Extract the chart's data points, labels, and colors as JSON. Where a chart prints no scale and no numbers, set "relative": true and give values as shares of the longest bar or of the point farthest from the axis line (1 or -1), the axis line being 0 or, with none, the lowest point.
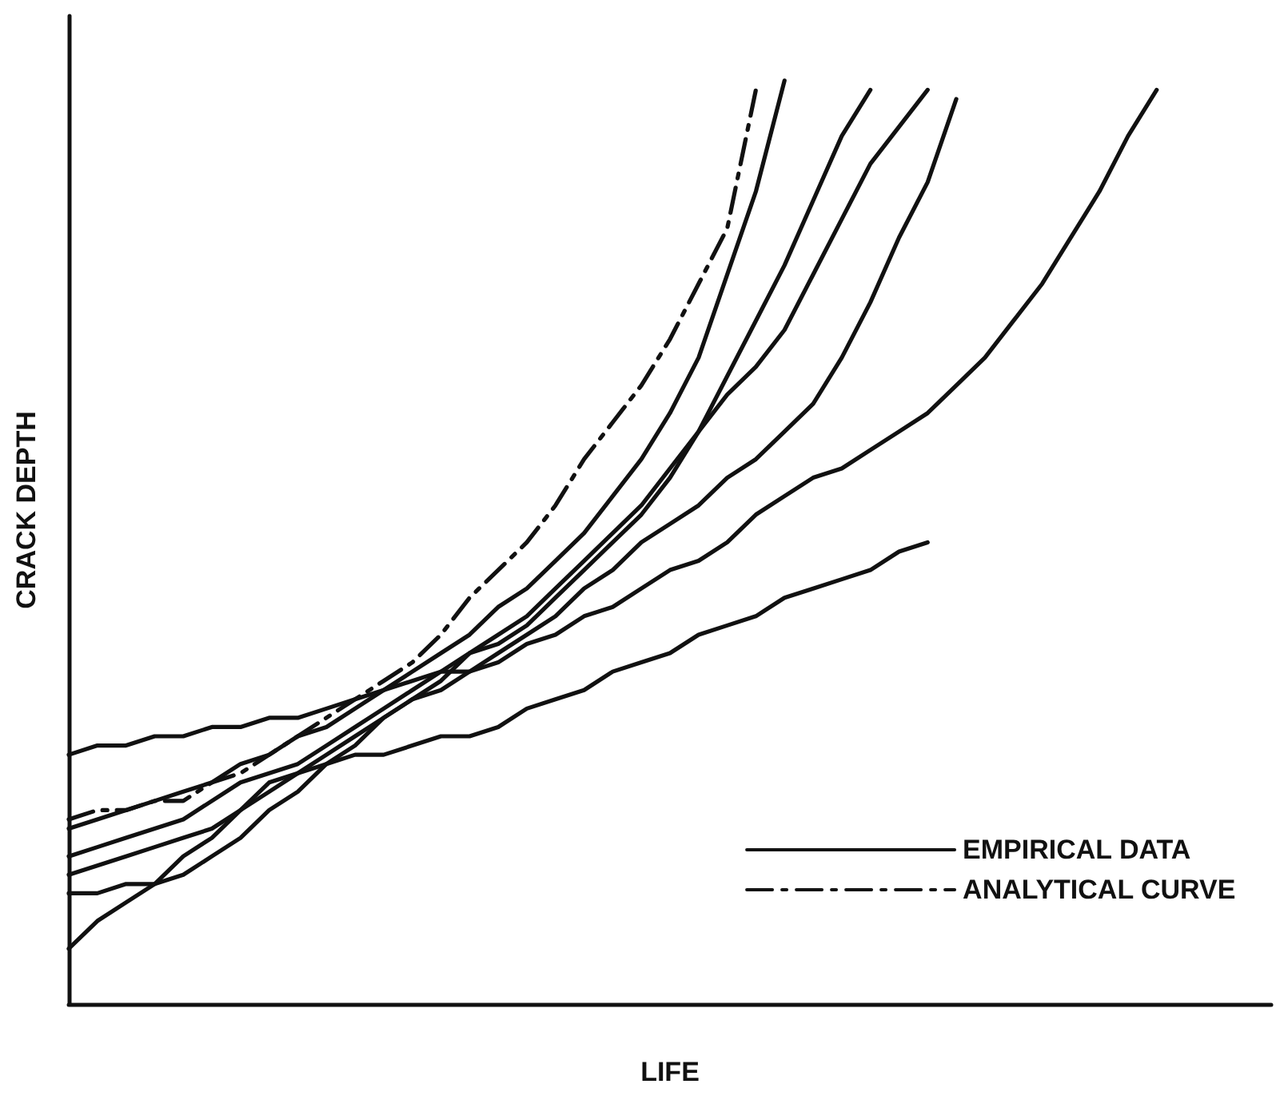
{
  "chart_data": {
    "type": "line",
    "relative": true,
    "xlabel": "LIFE",
    "ylabel": "CRACK DEPTH",
    "legend": "bottom right",
    "grid": false,
    "marker": "none",
    "categories": [
      null,
      null,
      null,
      null,
      null,
      null,
      null,
      null,
      null,
      null,
      null,
      null,
      null,
      null,
      null,
      null,
      null,
      null,
      null,
      null,
      null,
      null,
      null,
      null,
      null,
      null,
      null,
      null,
      null,
      null,
      null,
      null,
      null,
      null,
      null,
      null,
      null,
      null,
      null,
      null,
      null,
      null,
      null
    ],
    "series": [
      {
        "name": "EMPIRICAL DATA",
        "color": "#111111",
        "line_style": "solid",
        "values": [
          0.19,
          0.2,
          0.21,
          0.22,
          0.23,
          0.24,
          0.26,
          0.27,
          0.29,
          0.3,
          0.32,
          0.34,
          0.36,
          0.38,
          0.4,
          0.43,
          0.45,
          0.48,
          0.51,
          0.55,
          0.59,
          0.64,
          0.7,
          0.79,
          0.88,
          1.0,
          null,
          null,
          null,
          null,
          null,
          null,
          null,
          null,
          null,
          null,
          null,
          null,
          null,
          null,
          null,
          null,
          null
        ]
      },
      {
        "color": "#111111",
        "line_style": "solid",
        "values": [
          0.16,
          0.17,
          0.18,
          0.19,
          0.2,
          0.22,
          0.24,
          0.25,
          0.26,
          0.28,
          0.3,
          0.32,
          0.34,
          0.36,
          0.38,
          0.39,
          0.41,
          0.44,
          0.47,
          0.5,
          0.53,
          0.57,
          0.62,
          0.68,
          0.74,
          0.8,
          0.87,
          0.94,
          0.99,
          null,
          null,
          null,
          null,
          null,
          null,
          null,
          null,
          null,
          null,
          null,
          null,
          null,
          null
        ]
      },
      {
        "color": "#111111",
        "line_style": "solid",
        "values": [
          0.14,
          0.15,
          0.16,
          0.17,
          0.18,
          0.19,
          0.21,
          0.23,
          0.25,
          0.27,
          0.29,
          0.31,
          0.33,
          0.35,
          0.38,
          0.4,
          0.42,
          0.45,
          0.48,
          0.51,
          0.54,
          0.58,
          0.62,
          0.66,
          0.69,
          0.73,
          0.79,
          0.85,
          0.91,
          0.95,
          0.99,
          null,
          null,
          null,
          null,
          null,
          null,
          null,
          null,
          null,
          null,
          null,
          null
        ]
      },
      {
        "color": "#111111",
        "line_style": "solid",
        "values": [
          0.12,
          0.12,
          0.13,
          0.13,
          0.14,
          0.16,
          0.18,
          0.21,
          0.23,
          0.26,
          0.28,
          0.31,
          0.33,
          0.34,
          0.36,
          0.38,
          0.4,
          0.42,
          0.45,
          0.47,
          0.5,
          0.52,
          0.54,
          0.57,
          0.59,
          0.62,
          0.65,
          0.7,
          0.76,
          0.83,
          0.89,
          0.98,
          null,
          null,
          null,
          null,
          null,
          null,
          null,
          null,
          null,
          null,
          null
        ]
      },
      {
        "color": "#111111",
        "line_style": "solid",
        "values": [
          0.27,
          0.28,
          0.28,
          0.29,
          0.29,
          0.3,
          0.3,
          0.31,
          0.31,
          0.32,
          0.33,
          0.34,
          0.35,
          0.36,
          0.36,
          0.37,
          0.39,
          0.4,
          0.42,
          0.43,
          0.45,
          0.47,
          0.48,
          0.5,
          0.53,
          0.55,
          0.57,
          0.58,
          0.6,
          0.62,
          0.64,
          0.67,
          0.7,
          0.74,
          0.78,
          0.83,
          0.88,
          0.94,
          0.99,
          null,
          null,
          null,
          null
        ]
      },
      {
        "color": "#111111",
        "line_style": "solid",
        "values": [
          0.06,
          0.09,
          0.11,
          0.13,
          0.16,
          0.18,
          0.21,
          0.24,
          0.25,
          0.26,
          0.27,
          0.27,
          0.28,
          0.29,
          0.29,
          0.3,
          0.32,
          0.33,
          0.34,
          0.36,
          0.37,
          0.38,
          0.4,
          0.41,
          0.42,
          0.44,
          0.45,
          0.46,
          0.47,
          0.49,
          0.5,
          null,
          null,
          null,
          null,
          null,
          null,
          null,
          null,
          null,
          null,
          null,
          null
        ]
      },
      {
        "name": "ANALYTICAL CURVE",
        "color": "#111111",
        "line_style": "dashed",
        "values": [
          0.2,
          0.21,
          0.21,
          0.22,
          0.22,
          0.24,
          0.25,
          0.27,
          0.29,
          0.31,
          0.33,
          0.35,
          0.37,
          0.4,
          0.44,
          0.47,
          0.5,
          0.54,
          0.59,
          0.63,
          0.67,
          0.72,
          0.78,
          0.84,
          0.99,
          null,
          null,
          null,
          null,
          null,
          null,
          null,
          null,
          null,
          null,
          null,
          null,
          null,
          null,
          null,
          null,
          null,
          null
        ]
      }
    ]
  }
}
